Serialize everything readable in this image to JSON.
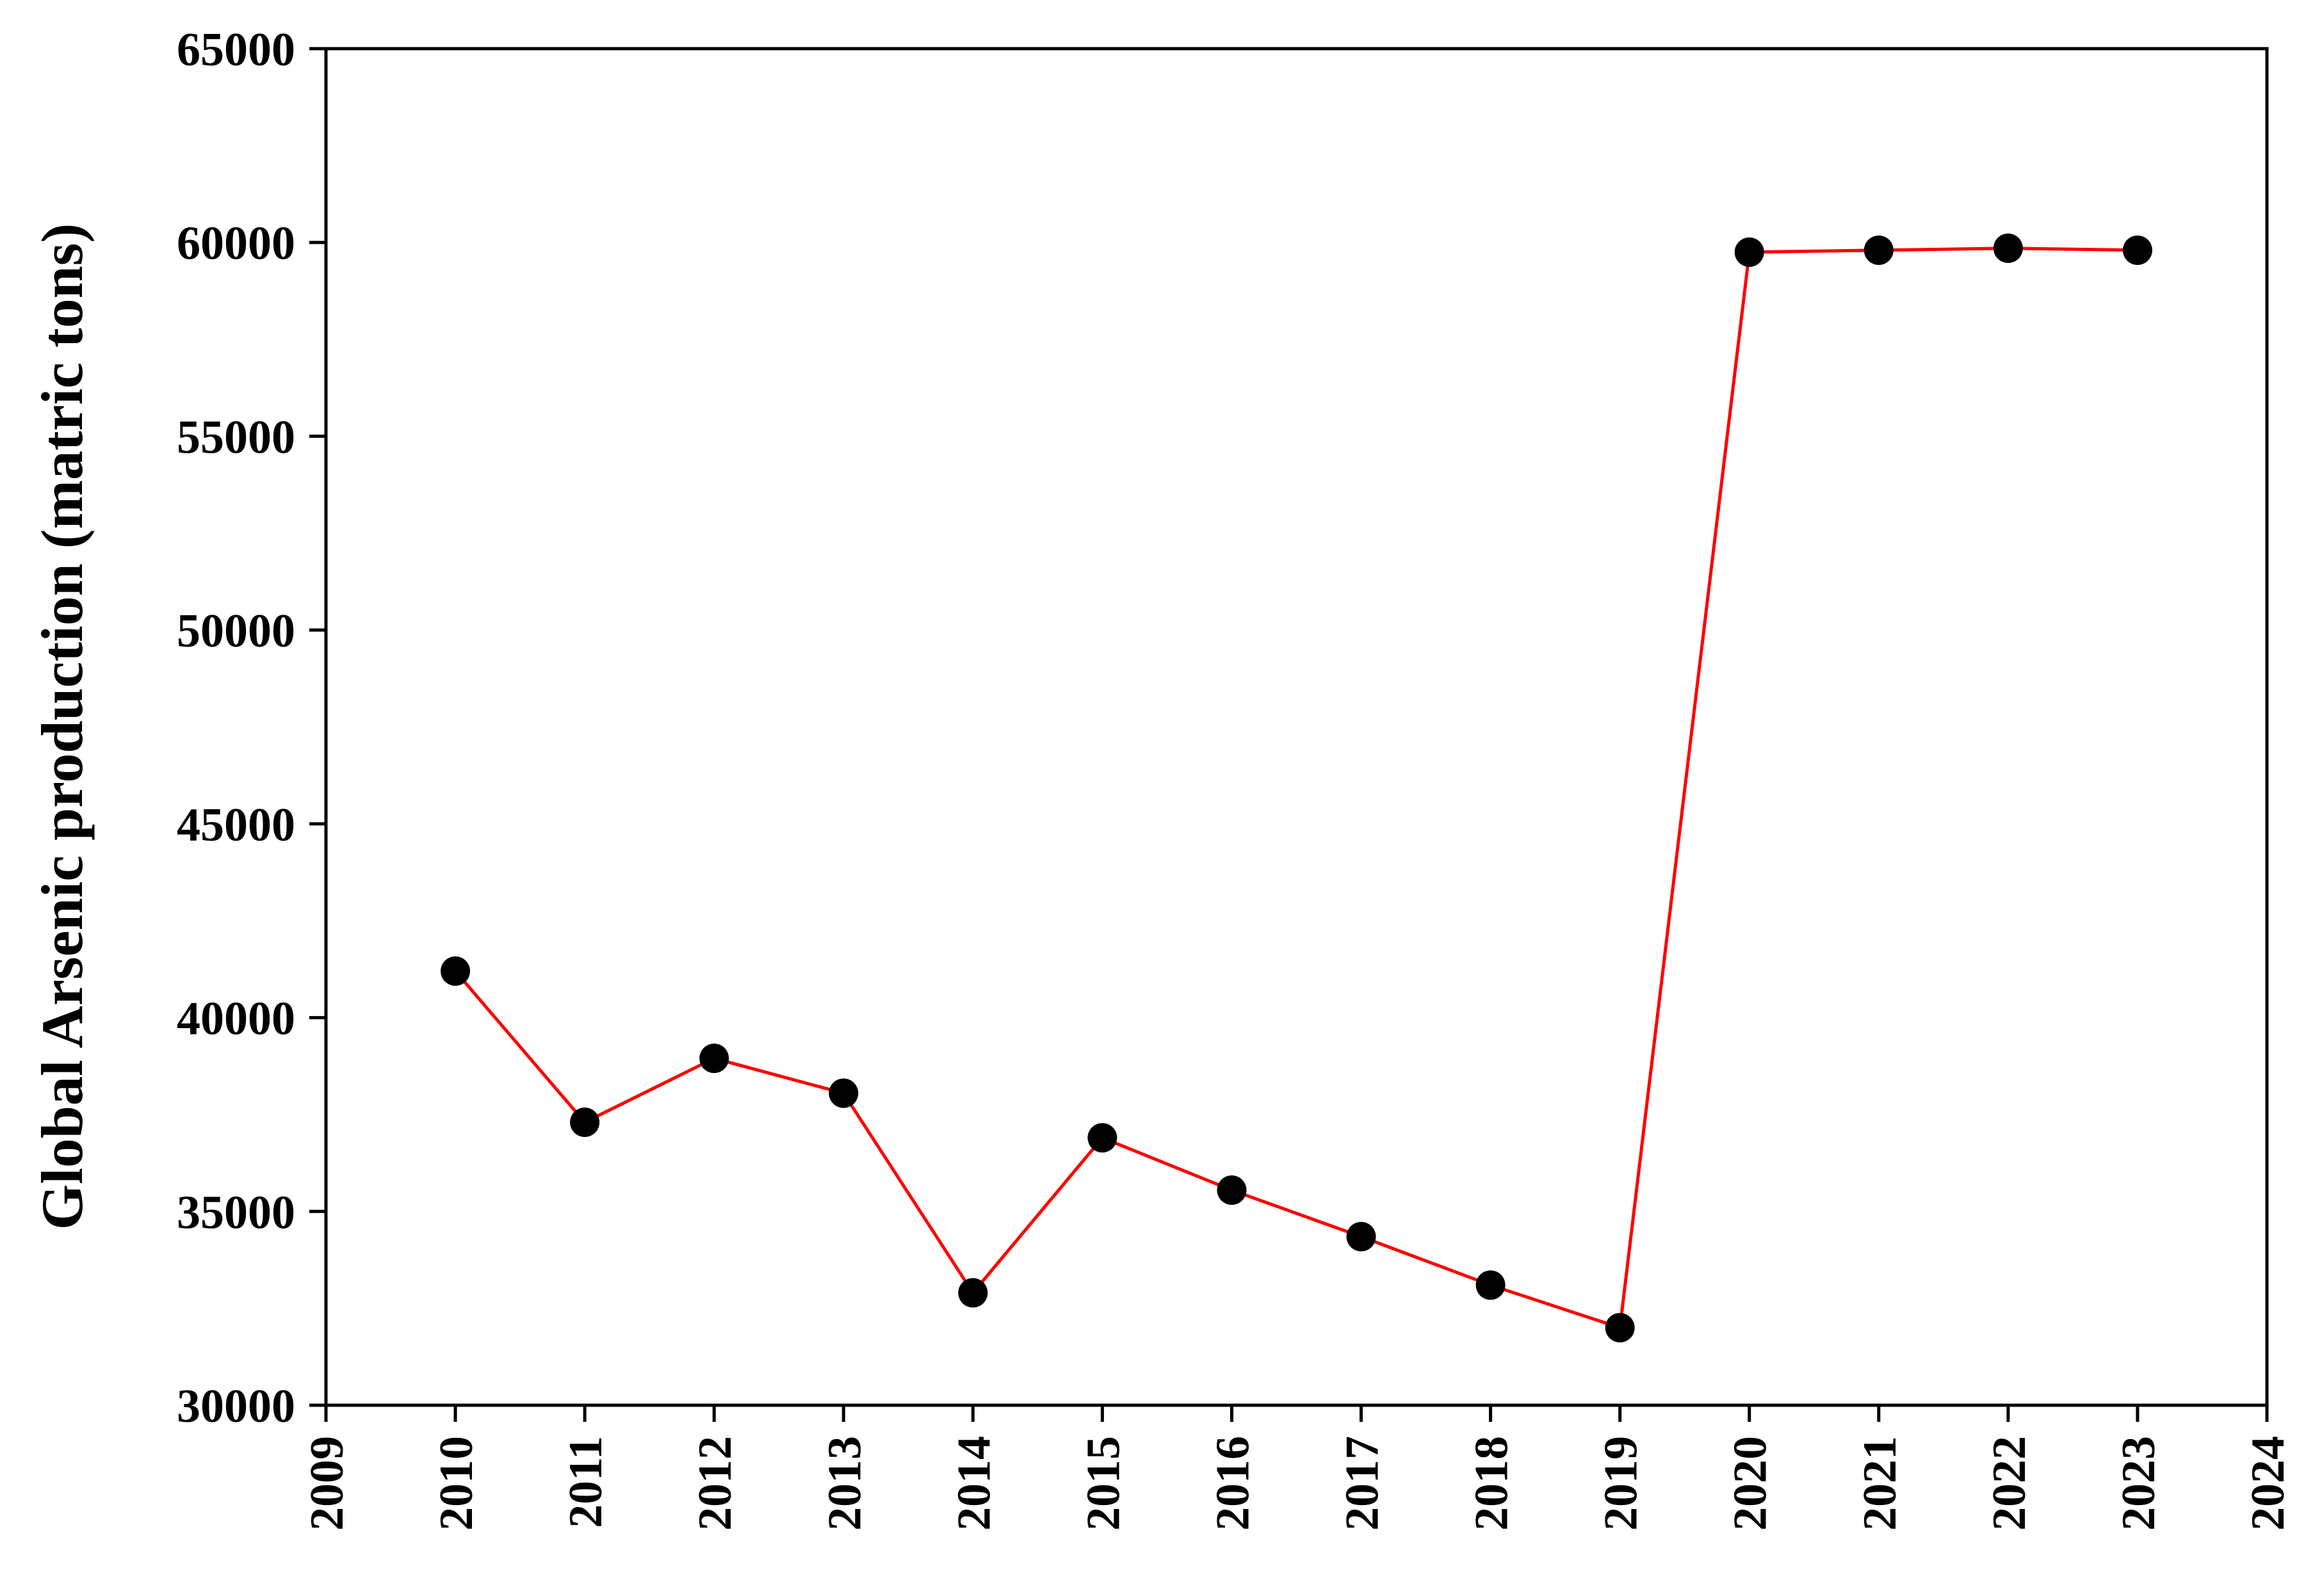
{
  "chart_data": {
    "type": "line",
    "title": "",
    "xlabel": "",
    "ylabel": "Global Arsenic production (matric tons)",
    "xlim": [
      2009,
      2024
    ],
    "ylim": [
      30000,
      65000
    ],
    "x_ticks": [
      "2009",
      "2010",
      "2011",
      "2012",
      "2013",
      "2014",
      "2015",
      "2016",
      "2017",
      "2018",
      "2019",
      "2020",
      "2021",
      "2022",
      "2023",
      "2024"
    ],
    "y_ticks": [
      "30000",
      "35000",
      "40000",
      "45000",
      "50000",
      "55000",
      "60000",
      "65000"
    ],
    "grid": false,
    "legend": "none",
    "series": [
      {
        "color": "#ff0000",
        "marker_color": "#000000",
        "x": [
          2010,
          2011,
          2012,
          2013,
          2014,
          2015,
          2016,
          2017,
          2018,
          2019,
          2020,
          2021,
          2022,
          2023
        ],
        "y": [
          41200,
          37300,
          38950,
          38050,
          32900,
          36900,
          35550,
          34350,
          33100,
          32000,
          59750,
          59800,
          59850,
          59800
        ]
      }
    ]
  }
}
